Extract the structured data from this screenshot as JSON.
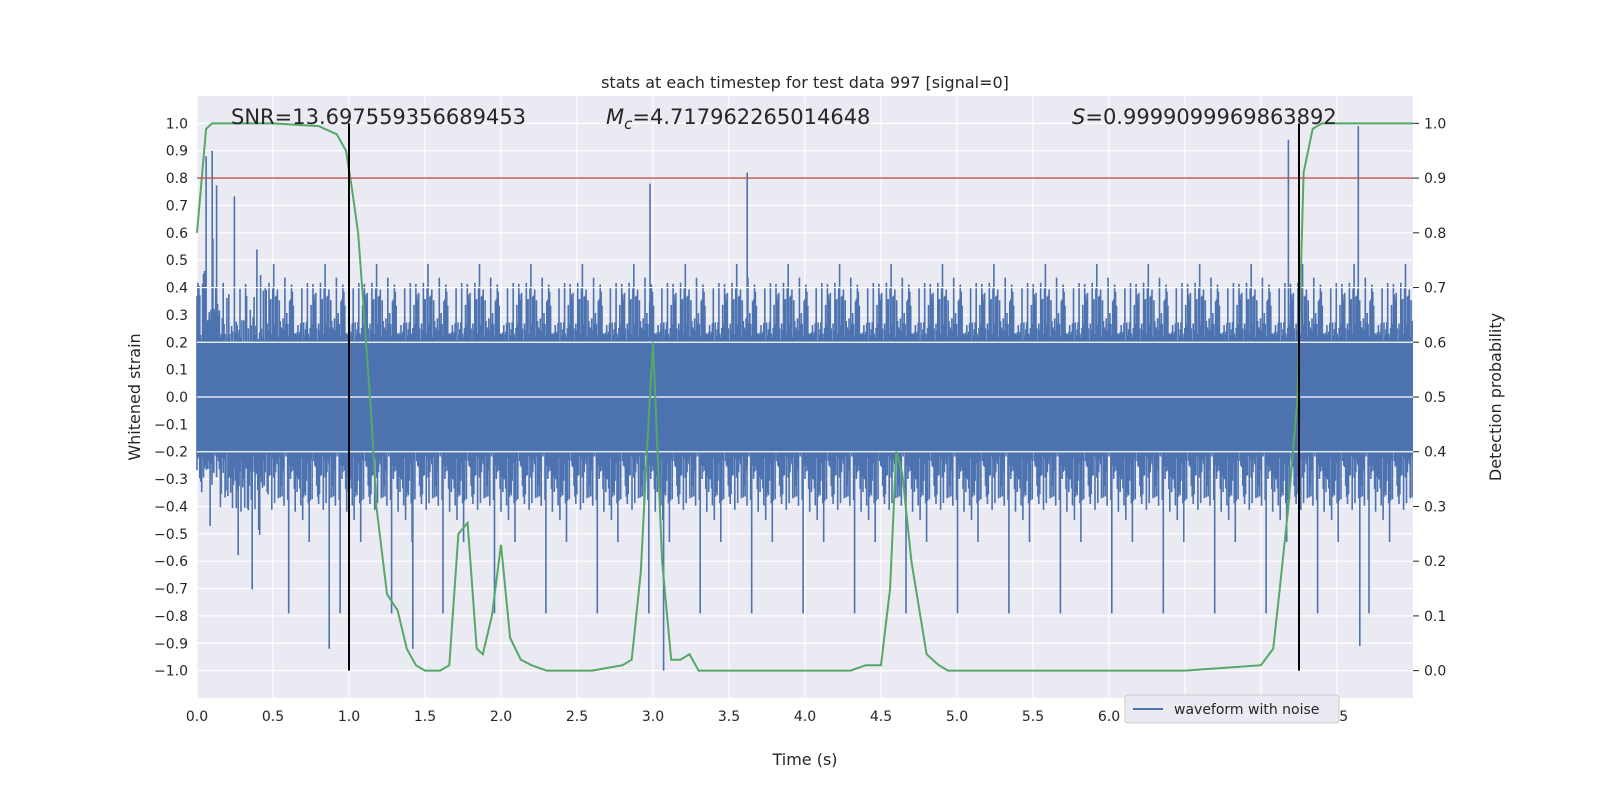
{
  "chart_data": {
    "type": "line",
    "title": "stats at each timestep for test data 997 [signal=0]",
    "xlabel": "Time (s)",
    "ylabel": "Whitened strain",
    "y2label": "Detection probability",
    "xlim": [
      0.0,
      8.0
    ],
    "ylim": [
      -1.1,
      1.1
    ],
    "y2lim": [
      -0.05,
      1.05
    ],
    "xticks": [
      0.0,
      0.5,
      1.0,
      1.5,
      2.0,
      2.5,
      3.0,
      3.5,
      4.0,
      4.5,
      5.0,
      5.5,
      6.0,
      6.5,
      7.0,
      7.5
    ],
    "xtick_labels": [
      "0.0",
      "0.5",
      "1.0",
      "1.5",
      "2.0",
      "2.5",
      "3.0",
      "3.5",
      "4.0",
      "4.5",
      "5.0",
      "5.5",
      "6.0",
      "6.5",
      "7.0",
      "7.5"
    ],
    "yticks": [
      1.0,
      0.9,
      0.8,
      0.7,
      0.6,
      0.5,
      0.4,
      0.3,
      0.2,
      0.1,
      0.0,
      -0.1,
      -0.2,
      -0.3,
      -0.4,
      -0.5,
      -0.6,
      -0.7,
      -0.8,
      -0.9,
      -1.0
    ],
    "ytick_labels": [
      "1.0",
      "0.9",
      "0.8",
      "0.7",
      "0.6",
      "0.5",
      "0.4",
      "0.3",
      "0.2",
      "0.1",
      "0.0",
      "−0.1",
      "−0.2",
      "−0.3",
      "−0.4",
      "−0.5",
      "−0.6",
      "−0.7",
      "−0.8",
      "−0.9",
      "−1.0"
    ],
    "y2ticks": [
      1.0,
      0.9,
      0.8,
      0.7,
      0.6,
      0.5,
      0.4,
      0.3,
      0.2,
      0.1,
      0.0
    ],
    "y2tick_labels": [
      "1.0",
      "0.9",
      "0.8",
      "0.7",
      "0.6",
      "0.5",
      "0.4",
      "0.3",
      "0.2",
      "0.1",
      "0.0"
    ],
    "grid": true,
    "legend": {
      "location": "lower-right",
      "entries": [
        {
          "label": "waveform with noise",
          "color": "#4c72b0"
        }
      ]
    },
    "annotations": {
      "snr": "SNR=13.697559356689453",
      "mc_symbol": "M",
      "mc_sub": "c",
      "mc_value": "=4.717962265014648",
      "s_symbol": "S",
      "s_value": "=0.9999099969863892"
    },
    "series": [
      {
        "name": "waveform with noise",
        "kind": "noise",
        "color": "#4c72b0",
        "description_x_range": [
          0.0,
          8.0
        ],
        "core_band": [
          -0.2,
          0.2
        ],
        "envelope_peaks": [
          {
            "x": 0.06,
            "y": 0.88
          },
          {
            "x": 0.1,
            "y": 0.9
          },
          {
            "x": 0.87,
            "y": -0.92
          },
          {
            "x": 1.42,
            "y": -0.92
          },
          {
            "x": 2.98,
            "y": 0.78
          },
          {
            "x": 3.07,
            "y": -1.0
          },
          {
            "x": 3.62,
            "y": 0.82
          },
          {
            "x": 7.18,
            "y": 0.94
          },
          {
            "x": 7.64,
            "y": 0.99
          },
          {
            "x": 7.65,
            "y": -0.91
          }
        ]
      },
      {
        "name": "detection probability",
        "axis": "right",
        "color": "#55a868",
        "x": [
          0.0,
          0.06,
          0.1,
          0.2,
          0.5,
          0.8,
          0.92,
          0.98,
          1.02,
          1.06,
          1.1,
          1.15,
          1.18,
          1.25,
          1.32,
          1.38,
          1.44,
          1.5,
          1.6,
          1.66,
          1.72,
          1.78,
          1.84,
          1.88,
          1.94,
          2.0,
          2.06,
          2.13,
          2.2,
          2.3,
          2.4,
          2.6,
          2.8,
          2.86,
          2.92,
          2.96,
          3.0,
          3.06,
          3.12,
          3.18,
          3.24,
          3.3,
          3.36,
          3.5,
          3.8,
          4.0,
          4.3,
          4.4,
          4.5,
          4.56,
          4.6,
          4.64,
          4.7,
          4.8,
          4.88,
          4.94,
          5.0,
          5.2,
          5.5,
          6.0,
          6.5,
          7.0,
          7.08,
          7.12,
          7.18,
          7.24,
          7.28,
          7.34,
          7.4,
          7.5,
          7.7,
          8.0
        ],
        "y": [
          0.8,
          0.99,
          1.0,
          1.0,
          1.0,
          0.995,
          0.98,
          0.95,
          0.88,
          0.8,
          0.65,
          0.45,
          0.3,
          0.14,
          0.11,
          0.04,
          0.01,
          0.0,
          0.0,
          0.01,
          0.25,
          0.27,
          0.04,
          0.03,
          0.1,
          0.23,
          0.06,
          0.02,
          0.01,
          0.0,
          0.0,
          0.0,
          0.01,
          0.02,
          0.18,
          0.4,
          0.6,
          0.2,
          0.02,
          0.02,
          0.03,
          0.0,
          0.0,
          0.0,
          0.0,
          0.0,
          0.0,
          0.01,
          0.01,
          0.15,
          0.4,
          0.36,
          0.2,
          0.03,
          0.01,
          0.0,
          0.0,
          0.0,
          0.0,
          0.0,
          0.0,
          0.01,
          0.04,
          0.14,
          0.3,
          0.5,
          0.91,
          0.99,
          1.0,
          1.0,
          1.0,
          1.0
        ]
      }
    ],
    "hlines": [
      {
        "axis": "left",
        "y": 0.8,
        "color": "#c44e52",
        "name": "threshold-line"
      }
    ],
    "vlines": [
      {
        "x": 1.0,
        "ymin": -1.0,
        "ymax": 1.0,
        "color": "#000000",
        "name": "vline-1"
      },
      {
        "x": 7.25,
        "ymin": -1.0,
        "ymax": 1.0,
        "color": "#000000",
        "name": "vline-2"
      }
    ]
  }
}
